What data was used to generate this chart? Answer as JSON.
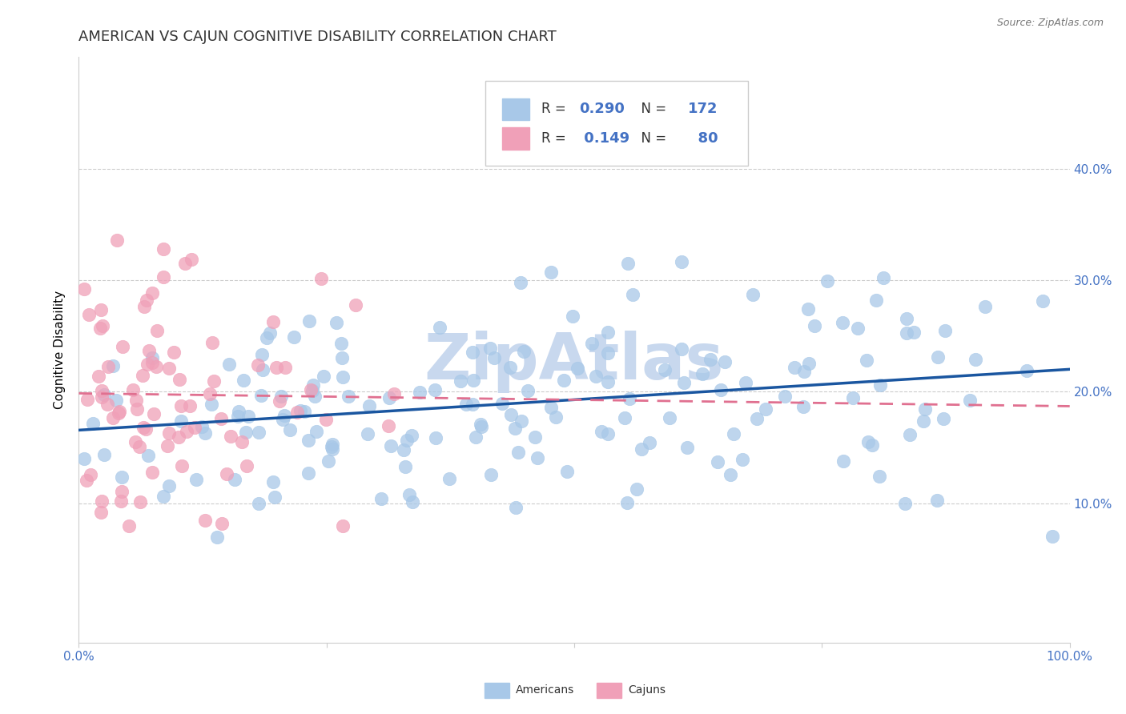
{
  "title": "AMERICAN VS CAJUN COGNITIVE DISABILITY CORRELATION CHART",
  "source": "Source: ZipAtlas.com",
  "ylabel": "Cognitive Disability",
  "xlim": [
    0.0,
    1.0
  ],
  "ylim": [
    -0.025,
    0.5
  ],
  "r_american": 0.29,
  "n_american": 172,
  "r_cajun": 0.149,
  "n_cajun": 80,
  "color_american": "#a8c8e8",
  "color_cajun": "#f0a0b8",
  "line_color_american": "#1a56a0",
  "line_color_cajun": "#e07090",
  "background_color": "#ffffff",
  "title_fontsize": 13,
  "axis_label_fontsize": 11,
  "tick_fontsize": 11,
  "legend_r_color_american": "#4472c4",
  "legend_r_color_cajun": "#4472c4",
  "legend_n_color_american": "#4472c4",
  "legend_n_color_cajun": "#4472c4",
  "watermark": "ZipAtlas",
  "watermark_color": "#c8d8ee",
  "grid_color": "#cccccc",
  "spine_color": "#cccccc"
}
